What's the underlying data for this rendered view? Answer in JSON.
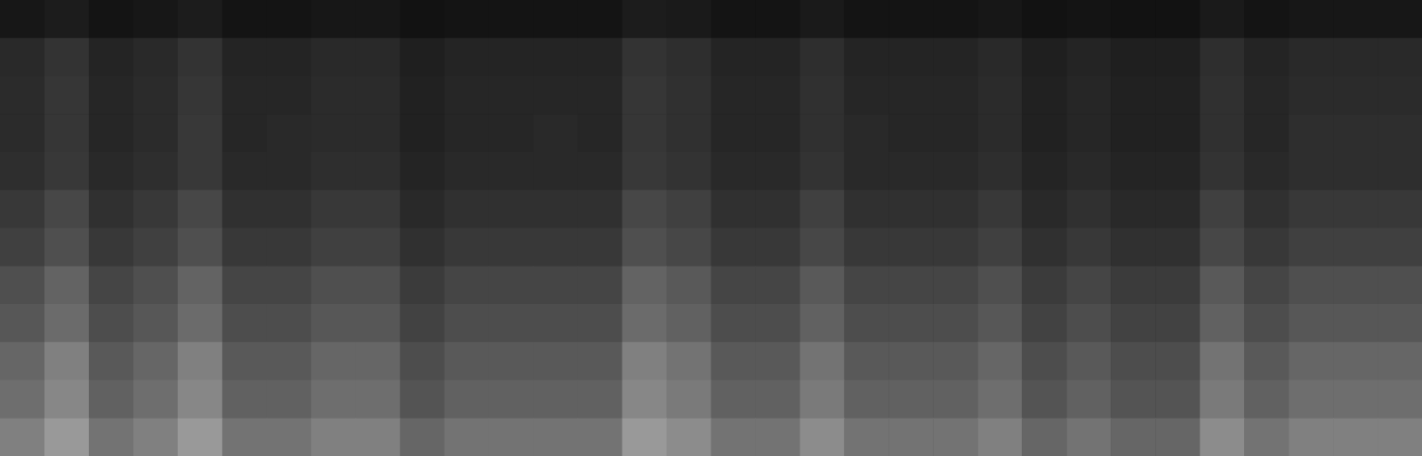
{
  "chart_data": {
    "type": "heatmap",
    "tick_labels": false,
    "zlim": [
      0,
      100
    ],
    "values": [
      [
        9,
        11,
        8,
        9,
        11,
        8,
        8,
        9,
        9,
        7,
        8,
        8,
        8,
        8,
        11,
        10,
        8,
        8,
        10,
        8,
        8,
        8,
        9,
        7,
        8,
        7,
        7,
        10,
        8,
        9,
        9,
        9
      ],
      [
        16,
        20,
        14,
        16,
        20,
        14,
        14,
        16,
        16,
        12,
        14,
        14,
        14,
        14,
        20,
        18,
        14,
        14,
        18,
        14,
        14,
        14,
        16,
        12,
        14,
        12,
        12,
        18,
        14,
        16,
        16,
        16
      ],
      [
        17,
        21,
        15,
        17,
        21,
        15,
        15,
        17,
        17,
        13,
        15,
        15,
        15,
        15,
        21,
        19,
        15,
        15,
        19,
        15,
        15,
        15,
        17,
        13,
        15,
        13,
        13,
        19,
        15,
        17,
        17,
        17
      ],
      [
        17,
        21,
        15,
        17,
        22,
        15,
        16,
        17,
        17,
        13,
        15,
        15,
        16,
        15,
        21,
        19,
        15,
        15,
        19,
        16,
        15,
        15,
        17,
        13,
        15,
        13,
        13,
        19,
        15,
        18,
        18,
        18
      ],
      [
        18,
        22,
        16,
        18,
        22,
        16,
        16,
        18,
        18,
        14,
        16,
        16,
        16,
        16,
        22,
        20,
        16,
        16,
        20,
        16,
        16,
        16,
        18,
        14,
        16,
        14,
        14,
        20,
        16,
        18,
        18,
        18
      ],
      [
        22,
        28,
        19,
        22,
        28,
        19,
        19,
        22,
        22,
        16,
        19,
        19,
        19,
        19,
        28,
        25,
        19,
        19,
        25,
        19,
        19,
        19,
        22,
        16,
        19,
        16,
        16,
        25,
        19,
        22,
        22,
        22
      ],
      [
        25,
        31,
        22,
        25,
        31,
        22,
        22,
        25,
        25,
        19,
        22,
        22,
        22,
        22,
        31,
        28,
        22,
        22,
        28,
        22,
        22,
        22,
        25,
        19,
        22,
        19,
        19,
        28,
        22,
        25,
        25,
        25
      ],
      [
        31,
        39,
        27,
        31,
        39,
        27,
        27,
        31,
        31,
        23,
        27,
        27,
        27,
        27,
        39,
        35,
        27,
        27,
        35,
        27,
        27,
        27,
        31,
        23,
        27,
        23,
        23,
        35,
        27,
        31,
        31,
        31
      ],
      [
        34,
        42,
        30,
        34,
        42,
        30,
        30,
        34,
        34,
        26,
        30,
        30,
        30,
        30,
        42,
        38,
        30,
        30,
        38,
        30,
        30,
        30,
        34,
        26,
        30,
        26,
        26,
        38,
        30,
        34,
        34,
        34
      ],
      [
        40,
        50,
        35,
        40,
        50,
        35,
        35,
        40,
        40,
        30,
        35,
        35,
        35,
        35,
        50,
        45,
        35,
        35,
        45,
        35,
        35,
        35,
        40,
        30,
        35,
        30,
        30,
        45,
        35,
        40,
        40,
        40
      ],
      [
        43,
        53,
        38,
        43,
        53,
        38,
        38,
        43,
        43,
        33,
        38,
        38,
        38,
        38,
        53,
        48,
        38,
        38,
        48,
        38,
        38,
        38,
        43,
        33,
        38,
        33,
        33,
        48,
        38,
        43,
        43,
        43
      ],
      [
        50,
        60,
        45,
        50,
        60,
        45,
        45,
        50,
        50,
        40,
        45,
        45,
        45,
        45,
        60,
        55,
        45,
        45,
        55,
        45,
        45,
        45,
        50,
        40,
        45,
        40,
        40,
        55,
        45,
        50,
        50,
        50
      ]
    ]
  }
}
